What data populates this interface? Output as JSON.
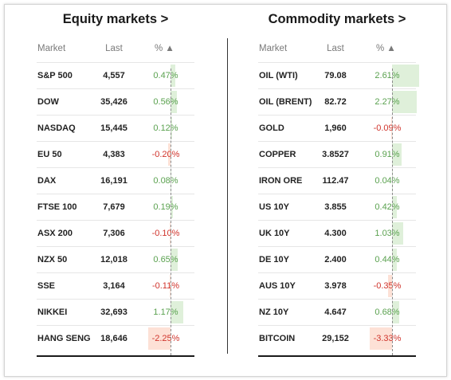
{
  "equity": {
    "title": "Equity markets >",
    "headers": {
      "market": "Market",
      "last": "Last",
      "pct": "% ▲"
    },
    "rows": [
      {
        "market": "S&P 500",
        "last": "4,557",
        "pct": "0.47%",
        "value": 0.47
      },
      {
        "market": "DOW",
        "last": "35,426",
        "pct": "0.56%",
        "value": 0.56
      },
      {
        "market": "NASDAQ",
        "last": "15,445",
        "pct": "0.12%",
        "value": 0.12
      },
      {
        "market": "EU 50",
        "last": "4,383",
        "pct": "-0.20%",
        "value": -0.2
      },
      {
        "market": "DAX",
        "last": "16,191",
        "pct": "0.08%",
        "value": 0.08
      },
      {
        "market": "FTSE 100",
        "last": "7,679",
        "pct": "0.19%",
        "value": 0.19
      },
      {
        "market": "ASX 200",
        "last": "7,306",
        "pct": "-0.10%",
        "value": -0.1
      },
      {
        "market": "NZX 50",
        "last": "12,018",
        "pct": "0.65%",
        "value": 0.65
      },
      {
        "market": "SSE",
        "last": "3,164",
        "pct": "-0.11%",
        "value": -0.11
      },
      {
        "market": "NIKKEI",
        "last": "32,693",
        "pct": "1.17%",
        "value": 1.17
      },
      {
        "market": "HANG SENG",
        "last": "18,646",
        "pct": "-2.25%",
        "value": -2.25
      }
    ]
  },
  "commodity": {
    "title": "Commodity markets >",
    "headers": {
      "market": "Market",
      "last": "Last",
      "pct": "% ▲"
    },
    "rows": [
      {
        "market": "OIL (WTI)",
        "last": "79.08",
        "pct": "2.61%",
        "value": 2.61
      },
      {
        "market": "OIL (BRENT)",
        "last": "82.72",
        "pct": "2.27%",
        "value": 2.27
      },
      {
        "market": "GOLD",
        "last": "1,960",
        "pct": "-0.09%",
        "value": -0.09
      },
      {
        "market": "COPPER",
        "last": "3.8527",
        "pct": "0.91%",
        "value": 0.91
      },
      {
        "market": "IRON ORE",
        "last": "112.47",
        "pct": "0.04%",
        "value": 0.04
      },
      {
        "market": "US 10Y",
        "last": "3.855",
        "pct": "0.42%",
        "value": 0.42
      },
      {
        "market": "UK 10Y",
        "last": "4.300",
        "pct": "1.03%",
        "value": 1.03
      },
      {
        "market": "DE 10Y",
        "last": "2.400",
        "pct": "0.44%",
        "value": 0.44
      },
      {
        "market": "AUS 10Y",
        "last": "3.978",
        "pct": "-0.35%",
        "value": -0.35
      },
      {
        "market": "NZ 10Y",
        "last": "4.647",
        "pct": "0.68%",
        "value": 0.68
      },
      {
        "market": "BITCOIN",
        "last": "29,152",
        "pct": "-3.33%",
        "value": -3.33
      }
    ]
  },
  "colors": {
    "positive_text": "#5aa14f",
    "negative_text": "#d0342c",
    "positive_bar": "#dff0da",
    "negative_bar": "#fde1d6"
  }
}
